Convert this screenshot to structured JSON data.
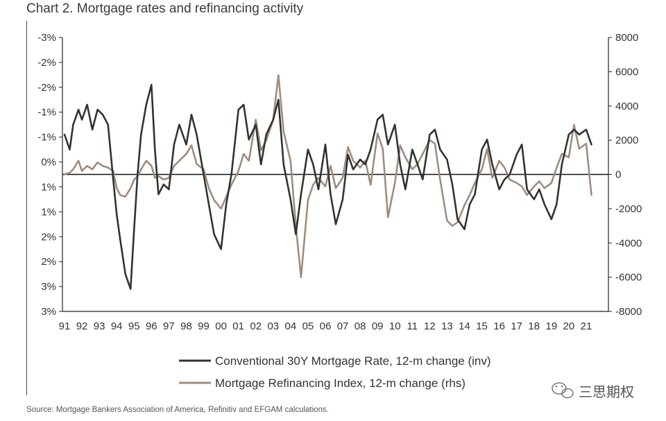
{
  "title": "Chart 2. Mortgage rates and refinancing activity",
  "source": "Source: Mortgage Bankers Association of America, Refinitiv and EFGAM calculations.",
  "watermark": "三思期权",
  "chart_data": {
    "type": "line",
    "title": "Chart 2. Mortgage rates and refinancing activity",
    "x_tick_labels": [
      "91",
      "92",
      "93",
      "94",
      "95",
      "96",
      "97",
      "98",
      "99",
      "00",
      "01",
      "02",
      "03",
      "04",
      "05",
      "06",
      "07",
      "08",
      "09",
      "10",
      "11",
      "12",
      "13",
      "14",
      "15",
      "16",
      "17",
      "18",
      "19",
      "20",
      "21"
    ],
    "left_axis": {
      "tick_labels": [
        "-3%",
        "-2%",
        "-2%",
        "-1%",
        "-1%",
        "0%",
        "1%",
        "1%",
        "2%",
        "2%",
        "3%",
        "3%"
      ],
      "range": [
        -2.75,
        2.75
      ],
      "inverted": true
    },
    "right_axis": {
      "tick_labels": [
        "8000",
        "6000",
        "4000",
        "2000",
        "0",
        "-2000",
        "-4000",
        "-6000",
        "-8000"
      ],
      "range": [
        -8000,
        8000
      ]
    },
    "zero_line": true,
    "legend_position": "bottom-center",
    "series": [
      {
        "name": "Conventional 30Y Mortgage Rate, 12-m change (inv)",
        "axis": "left",
        "color": "#2f3433",
        "x": [
          1991.0,
          1991.3,
          1991.5,
          1991.8,
          1992.0,
          1992.3,
          1992.6,
          1992.9,
          1993.2,
          1993.5,
          1993.8,
          1994.0,
          1994.2,
          1994.5,
          1994.8,
          1995.0,
          1995.2,
          1995.4,
          1995.7,
          1996.0,
          1996.2,
          1996.4,
          1996.7,
          1997.0,
          1997.3,
          1997.6,
          1998.0,
          1998.3,
          1998.6,
          1999.0,
          1999.3,
          1999.6,
          2000.0,
          2000.3,
          2000.6,
          2001.0,
          2001.3,
          2001.6,
          2002.0,
          2002.3,
          2002.6,
          2003.0,
          2003.3,
          2003.6,
          2004.0,
          2004.3,
          2004.6,
          2005.0,
          2005.3,
          2005.6,
          2006.0,
          2006.3,
          2006.6,
          2007.0,
          2007.3,
          2007.6,
          2008.0,
          2008.3,
          2008.6,
          2009.0,
          2009.3,
          2009.6,
          2010.0,
          2010.3,
          2010.6,
          2011.0,
          2011.3,
          2011.6,
          2012.0,
          2012.3,
          2012.6,
          2013.0,
          2013.3,
          2013.6,
          2014.0,
          2014.3,
          2014.6,
          2015.0,
          2015.3,
          2015.6,
          2016.0,
          2016.3,
          2016.6,
          2017.0,
          2017.3,
          2017.6,
          2018.0,
          2018.3,
          2018.6,
          2019.0,
          2019.3,
          2019.6,
          2020.0,
          2020.3,
          2020.6,
          2021.0,
          2021.3
        ],
        "values": [
          -0.8,
          -0.5,
          -1.0,
          -1.3,
          -1.1,
          -1.4,
          -0.9,
          -1.3,
          -1.2,
          -1.0,
          0.1,
          0.8,
          1.3,
          2.0,
          2.3,
          1.1,
          0.0,
          -0.8,
          -1.4,
          -1.8,
          -0.5,
          0.4,
          0.2,
          0.3,
          -0.6,
          -1.0,
          -0.6,
          -1.2,
          -0.8,
          0.0,
          0.6,
          1.2,
          1.5,
          0.6,
          0.0,
          -1.3,
          -1.4,
          -0.7,
          -1.0,
          -0.2,
          -0.8,
          -1.1,
          -1.5,
          -0.2,
          0.5,
          1.2,
          0.4,
          -0.5,
          -0.2,
          0.3,
          -0.6,
          0.4,
          1.0,
          0.5,
          -0.4,
          -0.1,
          -0.3,
          -0.2,
          -0.5,
          -1.1,
          -1.2,
          -0.6,
          -1.0,
          -0.2,
          0.3,
          -0.5,
          -0.2,
          0.1,
          -0.8,
          -0.9,
          -0.5,
          -0.3,
          0.2,
          0.9,
          1.1,
          0.6,
          0.4,
          -0.5,
          -0.7,
          -0.2,
          0.3,
          0.1,
          0.0,
          -0.4,
          -0.6,
          0.3,
          0.5,
          0.3,
          0.6,
          0.9,
          0.6,
          -0.2,
          -0.8,
          -0.9,
          -0.8,
          -0.9,
          -0.6
        ]
      },
      {
        "name": "Mortgage Refinancing Index, 12-m change (rhs)",
        "axis": "right",
        "color": "#a08c7c",
        "x": [
          1991.0,
          1991.3,
          1991.5,
          1991.8,
          1992.0,
          1992.3,
          1992.6,
          1992.9,
          1993.2,
          1993.5,
          1993.8,
          1994.0,
          1994.2,
          1994.5,
          1994.8,
          1995.0,
          1995.2,
          1995.4,
          1995.7,
          1996.0,
          1996.2,
          1996.4,
          1996.7,
          1997.0,
          1997.3,
          1997.6,
          1998.0,
          1998.3,
          1998.6,
          1999.0,
          1999.3,
          1999.6,
          2000.0,
          2000.3,
          2000.6,
          2001.0,
          2001.3,
          2001.6,
          2002.0,
          2002.3,
          2002.6,
          2003.0,
          2003.3,
          2003.6,
          2004.0,
          2004.3,
          2004.6,
          2005.0,
          2005.3,
          2005.6,
          2006.0,
          2006.3,
          2006.6,
          2007.0,
          2007.3,
          2007.6,
          2008.0,
          2008.3,
          2008.6,
          2009.0,
          2009.3,
          2009.6,
          2010.0,
          2010.3,
          2010.6,
          2011.0,
          2011.3,
          2011.6,
          2012.0,
          2012.3,
          2012.6,
          2013.0,
          2013.3,
          2013.6,
          2014.0,
          2014.3,
          2014.6,
          2015.0,
          2015.3,
          2015.6,
          2016.0,
          2016.3,
          2016.6,
          2017.0,
          2017.3,
          2017.6,
          2018.0,
          2018.3,
          2018.6,
          2019.0,
          2019.3,
          2019.6,
          2020.0,
          2020.3,
          2020.6,
          2021.0,
          2021.3
        ],
        "values": [
          0,
          100,
          300,
          800,
          200,
          500,
          300,
          700,
          500,
          400,
          200,
          -800,
          -1200,
          -1300,
          -800,
          -300,
          -100,
          300,
          800,
          500,
          -200,
          -100,
          -300,
          -200,
          500,
          800,
          1200,
          1700,
          600,
          300,
          -800,
          -1500,
          -2000,
          -1300,
          -600,
          200,
          1200,
          800,
          3200,
          1400,
          2000,
          3200,
          5800,
          2500,
          800,
          -3000,
          -6000,
          -1500,
          -600,
          -200,
          -700,
          500,
          -800,
          -200,
          1600,
          800,
          400,
          800,
          -600,
          2400,
          1500,
          -2500,
          -500,
          1700,
          1000,
          300,
          600,
          1200,
          2000,
          1800,
          -300,
          -2700,
          -3000,
          -2800,
          -1800,
          -1200,
          -500,
          300,
          1500,
          -200,
          800,
          400,
          -300,
          -500,
          -700,
          -1200,
          -700,
          -400,
          -800,
          -500,
          400,
          1200,
          1000,
          2900,
          1500,
          1800,
          -1200
        ]
      }
    ]
  }
}
